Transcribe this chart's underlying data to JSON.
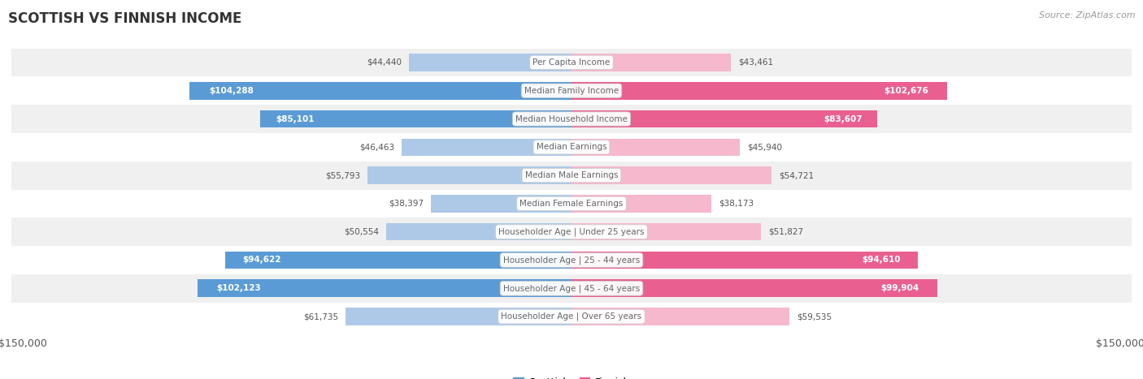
{
  "title": "SCOTTISH VS FINNISH INCOME",
  "source": "Source: ZipAtlas.com",
  "categories": [
    "Per Capita Income",
    "Median Family Income",
    "Median Household Income",
    "Median Earnings",
    "Median Male Earnings",
    "Median Female Earnings",
    "Householder Age | Under 25 years",
    "Householder Age | 25 - 44 years",
    "Householder Age | 45 - 64 years",
    "Householder Age | Over 65 years"
  ],
  "scottish_values": [
    44440,
    104288,
    85101,
    46463,
    55793,
    38397,
    50554,
    94622,
    102123,
    61735
  ],
  "finnish_values": [
    43461,
    102676,
    83607,
    45940,
    54721,
    38173,
    51827,
    94610,
    99904,
    59535
  ],
  "scottish_labels": [
    "$44,440",
    "$104,288",
    "$85,101",
    "$46,463",
    "$55,793",
    "$38,397",
    "$50,554",
    "$94,622",
    "$102,123",
    "$61,735"
  ],
  "finnish_labels": [
    "$43,461",
    "$102,676",
    "$83,607",
    "$45,940",
    "$54,721",
    "$38,173",
    "$51,827",
    "$94,610",
    "$99,904",
    "$59,535"
  ],
  "scottish_color_light": "#aec9e8",
  "scottish_color_dark": "#5b9bd5",
  "finnish_color_light": "#f5b8cc",
  "finnish_color_dark": "#e96090",
  "max_value": 150000,
  "row_colors": [
    "#f0f0f0",
    "#ffffff",
    "#f0f0f0",
    "#ffffff",
    "#f0f0f0",
    "#ffffff",
    "#f0f0f0",
    "#ffffff",
    "#f0f0f0",
    "#ffffff"
  ],
  "bar_height": 0.62,
  "inside_threshold": 65000,
  "label_color_inside": "#ffffff",
  "label_color_outside": "#555555",
  "center_label_color": "#666666",
  "axis_label_color": "#555555",
  "title_color": "#333333",
  "source_color": "#999999"
}
